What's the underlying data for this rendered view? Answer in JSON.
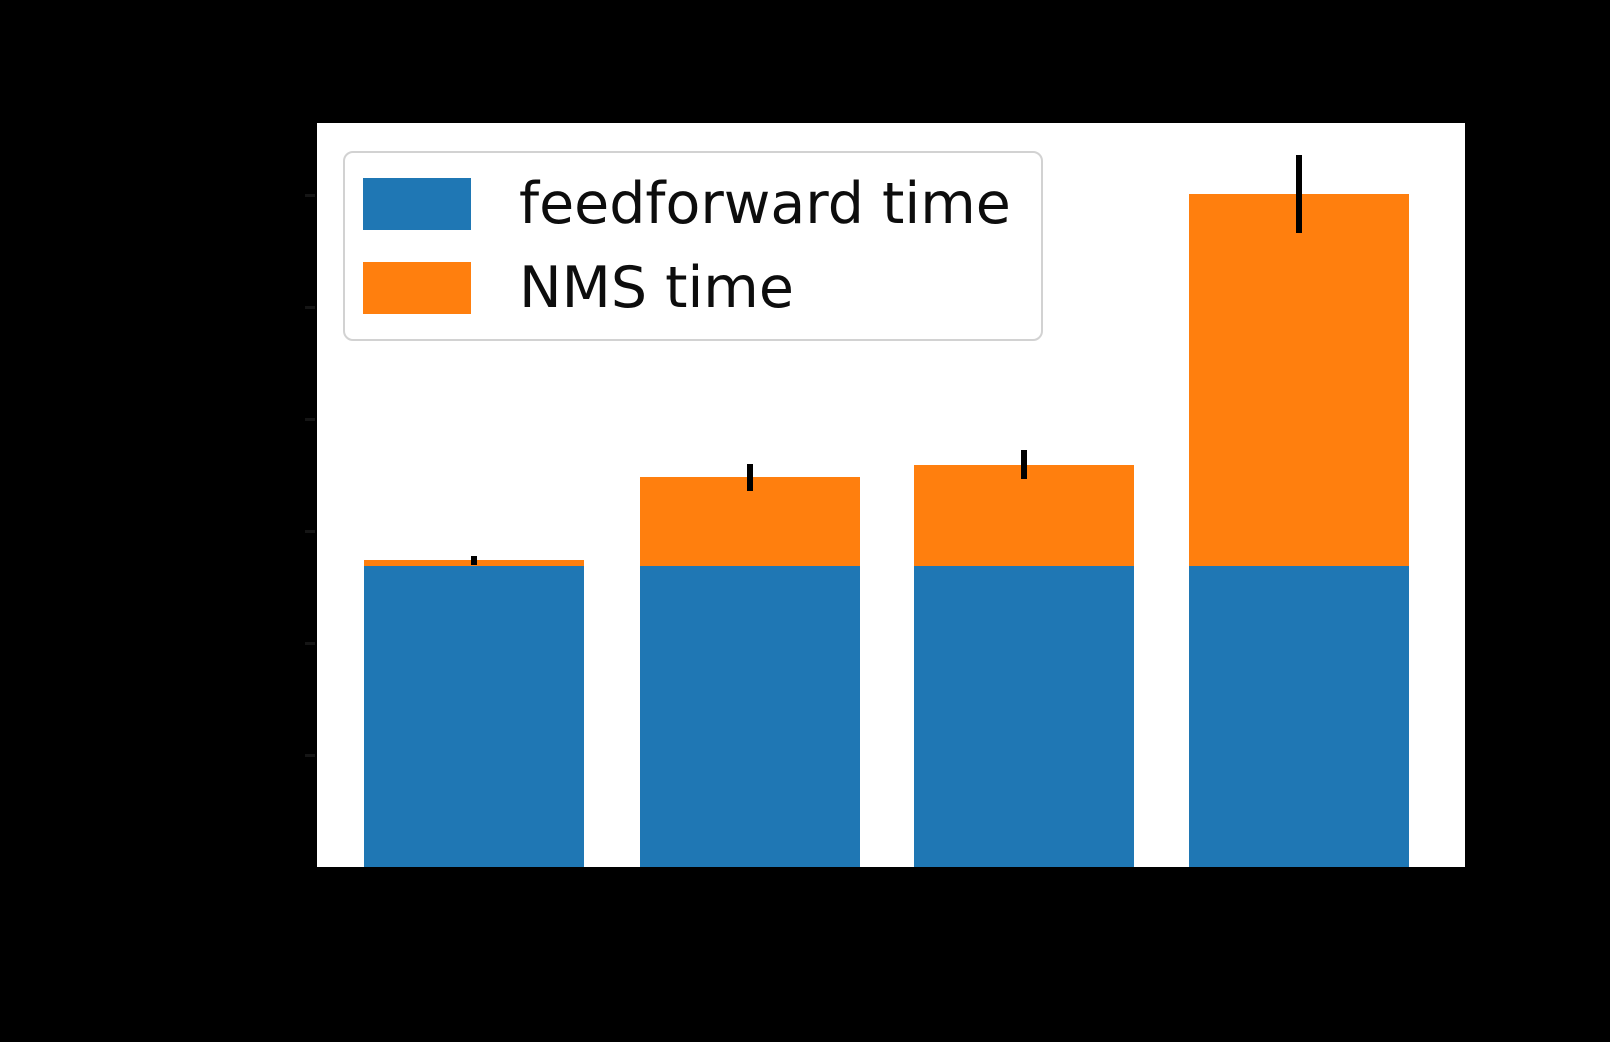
{
  "figure": {
    "background_color": "#000000",
    "plot_background_color": "#ffffff"
  },
  "legend": {
    "position": "upper-left",
    "entries": [
      {
        "label": "feedforward time",
        "color": "#1f77b4"
      },
      {
        "label": "NMS time",
        "color": "#ff7f0e"
      }
    ]
  },
  "chart_data": {
    "type": "bar",
    "stacked": true,
    "orientation": "vertical",
    "title": "",
    "xlabel": "",
    "ylabel": "",
    "categories": [
      "",
      "",
      "",
      ""
    ],
    "x_tick_labels_visible": false,
    "y_tick_labels_visible": false,
    "y_axis": {
      "unit": "tick-intervals (tick labels not visible: black text on black background)",
      "tick_values": [
        1,
        2,
        3,
        4,
        5,
        6
      ],
      "ylim": [
        0,
        6.64
      ],
      "grid": false
    },
    "series": [
      {
        "name": "feedforward time",
        "color": "#1f77b4",
        "values": [
          2.69,
          2.69,
          2.69,
          2.69
        ]
      },
      {
        "name": "NMS time",
        "color": "#ff7f0e",
        "values": [
          0.05,
          0.79,
          0.9,
          3.32
        ]
      }
    ],
    "stack_totals": [
      2.74,
      3.48,
      3.59,
      6.01
    ],
    "error_bars": {
      "color": "#000000",
      "applies_to": "stack-top",
      "half_ranges": [
        0.04,
        0.12,
        0.13,
        0.35
      ]
    },
    "legend_position": "upper left"
  }
}
